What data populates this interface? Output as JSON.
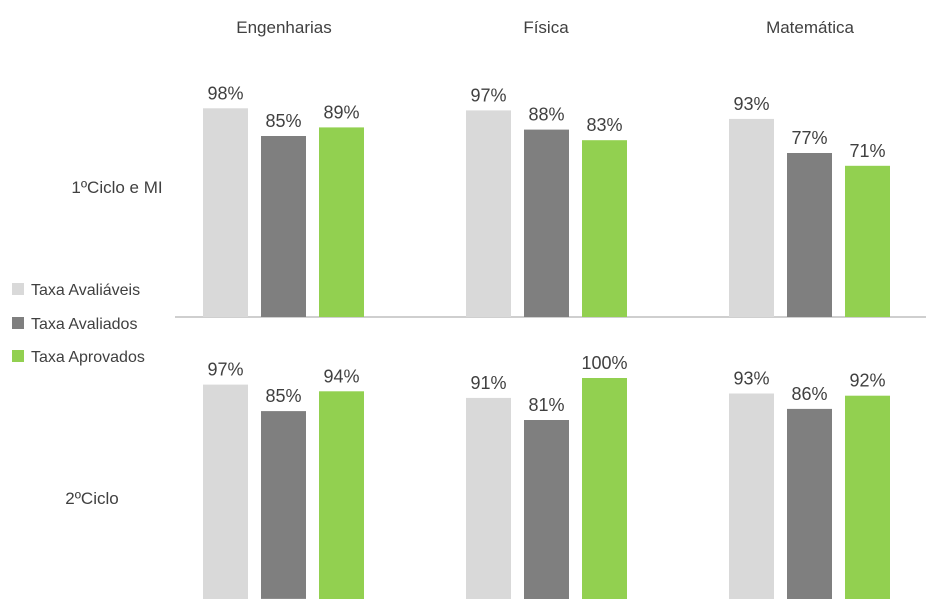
{
  "chart_data": {
    "type": "bar",
    "columns": [
      "Engenharias",
      "Física",
      "Matemática"
    ],
    "rows": [
      "1ºCiclo e MI",
      "2ºCiclo"
    ],
    "value_unit": "%",
    "ylim": [
      0,
      100
    ],
    "legend": {
      "position": "left",
      "entries": [
        "Taxa Avaliáveis",
        "Taxa Avaliados",
        "Taxa Aprovados"
      ]
    },
    "series": [
      {
        "name": "Taxa Avaliáveis",
        "color": "#d9d9d9",
        "values": {
          "1ºCiclo e MI": [
            98,
            97,
            93
          ],
          "2ºCiclo": [
            97,
            91,
            93
          ]
        }
      },
      {
        "name": "Taxa Avaliados",
        "color": "#7f7f7f",
        "values": {
          "1ºCiclo e MI": [
            85,
            88,
            77
          ],
          "2ºCiclo": [
            85,
            81,
            86
          ]
        }
      },
      {
        "name": "Taxa Aprovados",
        "color": "#92d050",
        "values": {
          "1ºCiclo e MI": [
            89,
            83,
            71
          ],
          "2ºCiclo": [
            94,
            100,
            92
          ]
        }
      }
    ],
    "data_labels": {
      "1ºCiclo e MI": [
        [
          "98%",
          "85%",
          "89%"
        ],
        [
          "97%",
          "88%",
          "83%"
        ],
        [
          "93%",
          "77%",
          "71%"
        ]
      ],
      "2ºCiclo": [
        [
          "97%",
          "85%",
          "94%"
        ],
        [
          "91%",
          "81%",
          "100%"
        ],
        [
          "93%",
          "86%",
          "92%"
        ]
      ]
    },
    "divider_color": "#bfbfbf"
  }
}
